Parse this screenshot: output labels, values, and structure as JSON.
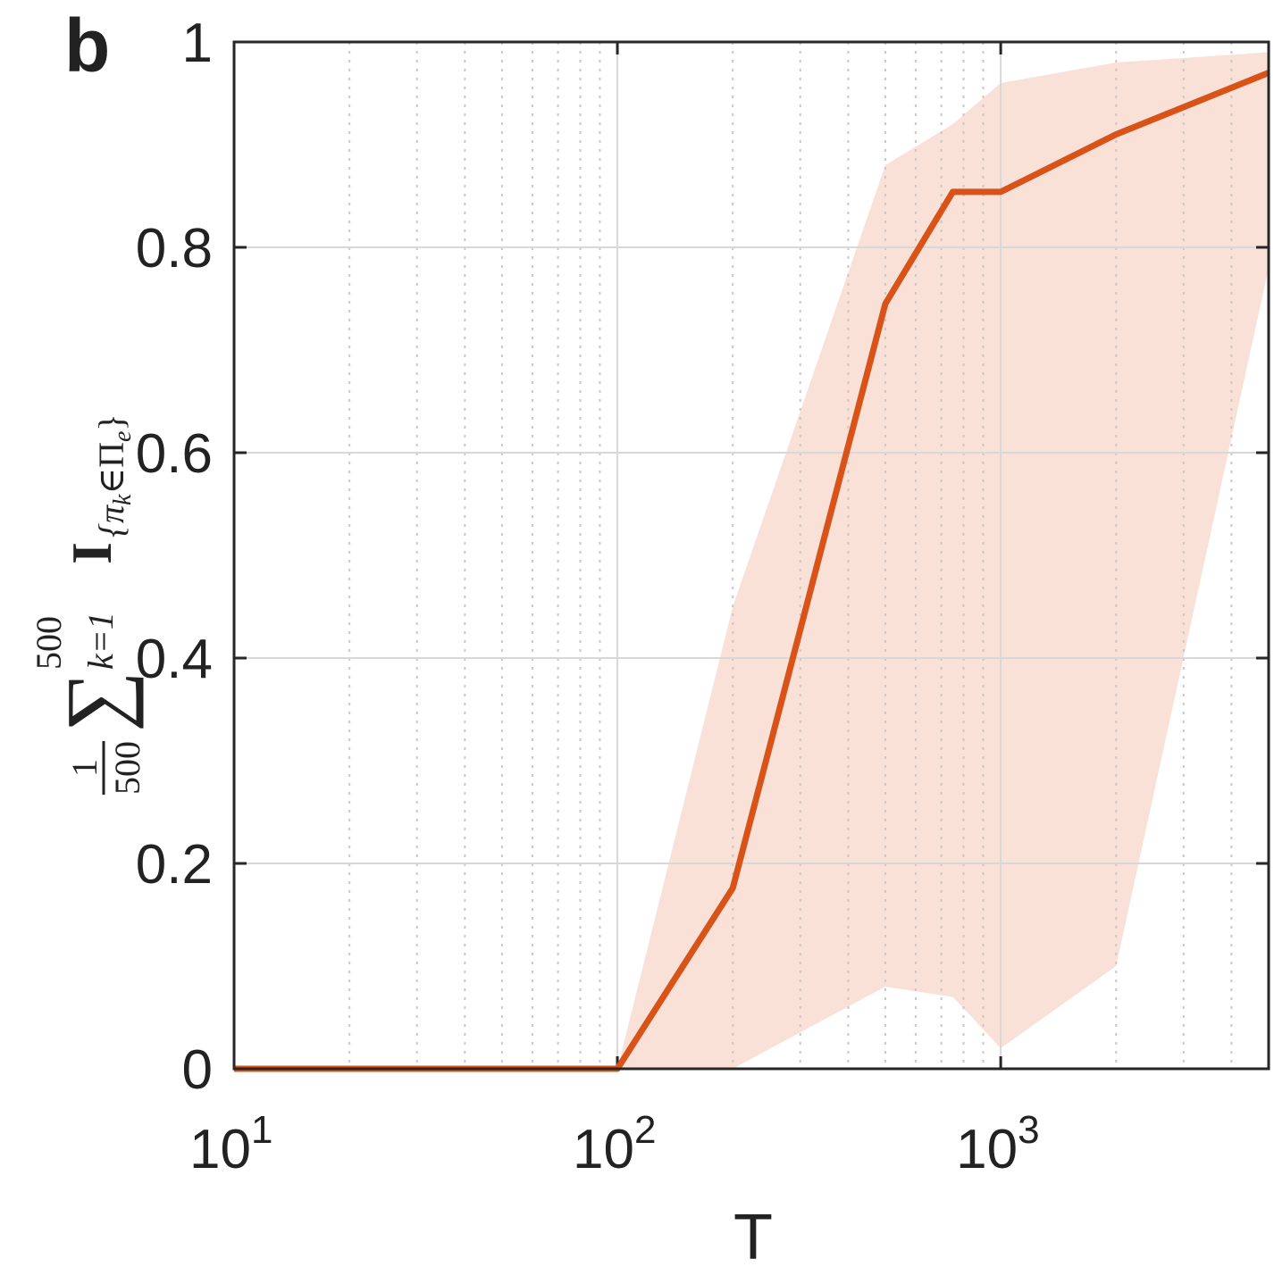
{
  "chart_data": {
    "type": "line",
    "panel_label": "b",
    "xlabel": "T",
    "ylabel": {
      "numerator": "1",
      "denominator": "500",
      "sum": "∑",
      "sum_upper": "500",
      "sum_lower": "k=1",
      "symbol": "I",
      "sub_open": "{π",
      "sub_k": "k",
      "sub_in": "∈Π",
      "sub_e": "e",
      "sub_close": "}"
    },
    "x": [
      10,
      20,
      50,
      100,
      200,
      500,
      750,
      1000,
      2000,
      5000
    ],
    "series": [
      {
        "color": "#d95319",
        "band_color": "#f9e1d8",
        "values": [
          0,
          0,
          0,
          0,
          0.176,
          0.745,
          0.854,
          0.854,
          0.91,
          0.97
        ],
        "upper": [
          0,
          0,
          0,
          0,
          0.45,
          0.88,
          0.92,
          0.96,
          0.98,
          0.99
        ],
        "lower": [
          0,
          0,
          0,
          0,
          0,
          0.08,
          0.07,
          0.02,
          0.1,
          0.78
        ]
      }
    ],
    "xscale": "log",
    "xlim": [
      10,
      5000
    ],
    "ylim": [
      0,
      1
    ],
    "xticks": [
      {
        "value": 10,
        "label": "10",
        "exponent": "1"
      },
      {
        "value": 100,
        "label": "10",
        "exponent": "2"
      },
      {
        "value": 1000,
        "label": "10",
        "exponent": "3"
      }
    ],
    "yticks": [
      0,
      0.2,
      0.4,
      0.6,
      0.8,
      1
    ],
    "grid": true,
    "minor_grid": true
  }
}
